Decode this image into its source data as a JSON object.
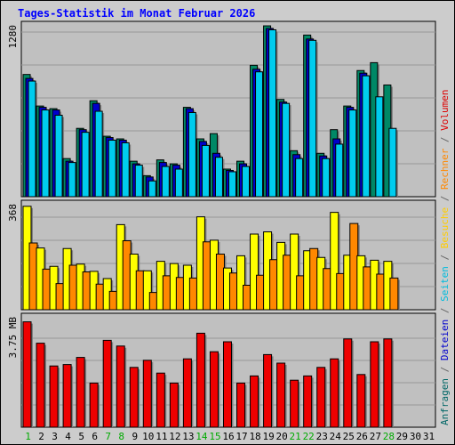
{
  "page": {
    "title": "Tages-Statistik im Monat Februar 2026",
    "right_label_segments": [
      {
        "text": "Anfragen",
        "color": "#006666"
      },
      {
        "text": " / ",
        "color": "#666666"
      },
      {
        "text": "Dateien",
        "color": "#0000cc"
      },
      {
        "text": " / ",
        "color": "#666666"
      },
      {
        "text": "Seiten",
        "color": "#00bbdd"
      },
      {
        "text": " / ",
        "color": "#666666"
      },
      {
        "text": "Besuche",
        "color": "#ffcc00"
      },
      {
        "text": " / ",
        "color": "#666666"
      },
      {
        "text": "Rechner",
        "color": "#ff8800"
      },
      {
        "text": " / ",
        "color": "#666666"
      },
      {
        "text": "Volumen",
        "color": "#dd0000"
      }
    ]
  },
  "chart_data": [
    {
      "type": "bar",
      "panel": "requests",
      "ylabel_max": "1280",
      "ymax": 1280,
      "categories": [
        "1",
        "2",
        "3",
        "4",
        "5",
        "6",
        "7",
        "8",
        "9",
        "10",
        "11",
        "12",
        "13",
        "14",
        "15",
        "16",
        "17",
        "18",
        "19",
        "20",
        "21",
        "22",
        "23",
        "24",
        "25",
        "26",
        "27",
        "28"
      ],
      "series": [
        {
          "key": "anfragen",
          "color": "#008866",
          "values": [
            930,
            690,
            670,
            290,
            520,
            730,
            460,
            440,
            270,
            160,
            280,
            250,
            680,
            440,
            480,
            210,
            270,
            1000,
            1300,
            740,
            350,
            1230,
            330,
            510,
            690,
            960,
            1020,
            850
          ]
        },
        {
          "key": "dateien",
          "color": "#0000cc",
          "values": [
            900,
            680,
            660,
            270,
            510,
            710,
            450,
            430,
            250,
            150,
            260,
            240,
            670,
            420,
            330,
            200,
            250,
            970,
            1280,
            720,
            320,
            1200,
            310,
            440,
            680,
            940,
            0,
            0
          ]
        },
        {
          "key": "seiten",
          "color": "#00ccee",
          "values": [
            880,
            660,
            620,
            260,
            490,
            650,
            430,
            410,
            240,
            120,
            230,
            210,
            640,
            390,
            300,
            190,
            230,
            950,
            1270,
            710,
            290,
            1190,
            290,
            400,
            660,
            920,
            760,
            520
          ]
        }
      ]
    },
    {
      "type": "bar",
      "panel": "visits",
      "ylabel_max": "368",
      "ymax": 368,
      "categories": [
        "1",
        "2",
        "3",
        "4",
        "5",
        "6",
        "7",
        "8",
        "9",
        "10",
        "11",
        "12",
        "13",
        "14",
        "15",
        "16",
        "17",
        "18",
        "19",
        "20",
        "21",
        "22",
        "23",
        "24",
        "25",
        "26",
        "27",
        "28"
      ],
      "series": [
        {
          "key": "besuche",
          "color": "#ffff00",
          "values": [
            372,
            222,
            156,
            220,
            164,
            138,
            112,
            306,
            200,
            140,
            174,
            166,
            160,
            334,
            250,
            150,
            194,
            272,
            280,
            242,
            272,
            212,
            188,
            350,
            196,
            194,
            178,
            174
          ]
        },
        {
          "key": "rechner",
          "color": "#ff8800",
          "values": [
            240,
            146,
            94,
            160,
            136,
            92,
            66,
            248,
            140,
            62,
            122,
            116,
            114,
            244,
            200,
            132,
            88,
            124,
            180,
            196,
            122,
            220,
            148,
            130,
            310,
            154,
            128,
            114
          ]
        }
      ]
    },
    {
      "type": "bar",
      "panel": "volume",
      "ylabel_max": "3.75 MB",
      "ymax": 3.75,
      "categories": [
        "1",
        "2",
        "3",
        "4",
        "5",
        "6",
        "7",
        "8",
        "9",
        "10",
        "11",
        "12",
        "13",
        "14",
        "15",
        "16",
        "17",
        "18",
        "19",
        "20",
        "21",
        "22",
        "23",
        "24",
        "25",
        "26",
        "27",
        "28"
      ],
      "series": [
        {
          "key": "volumen",
          "color": "#ee0000",
          "values": [
            3.7,
            2.95,
            2.15,
            2.2,
            2.45,
            1.55,
            3.05,
            2.85,
            2.1,
            2.35,
            1.9,
            1.55,
            2.4,
            3.3,
            2.65,
            3.0,
            1.55,
            1.8,
            2.55,
            2.25,
            1.65,
            1.8,
            2.1,
            2.4,
            3.1,
            1.85,
            3.0,
            3.1
          ]
        }
      ]
    }
  ],
  "x_axis": {
    "days": [
      "1",
      "2",
      "3",
      "4",
      "5",
      "6",
      "7",
      "8",
      "9",
      "10",
      "11",
      "12",
      "13",
      "14",
      "15",
      "16",
      "17",
      "18",
      "19",
      "20",
      "21",
      "22",
      "23",
      "24",
      "25",
      "26",
      "27",
      "28",
      "29",
      "30",
      "31"
    ],
    "weekend_days": [
      "1",
      "7",
      "8",
      "14",
      "15",
      "21",
      "22",
      "28"
    ],
    "weekend_color": "#00aa00",
    "weekday_color": "#000000"
  },
  "colors": {
    "frame_bg": "#cccccc",
    "panel_bg": "#c0c0c0",
    "grid": "#999999",
    "title": "#0000ff"
  }
}
